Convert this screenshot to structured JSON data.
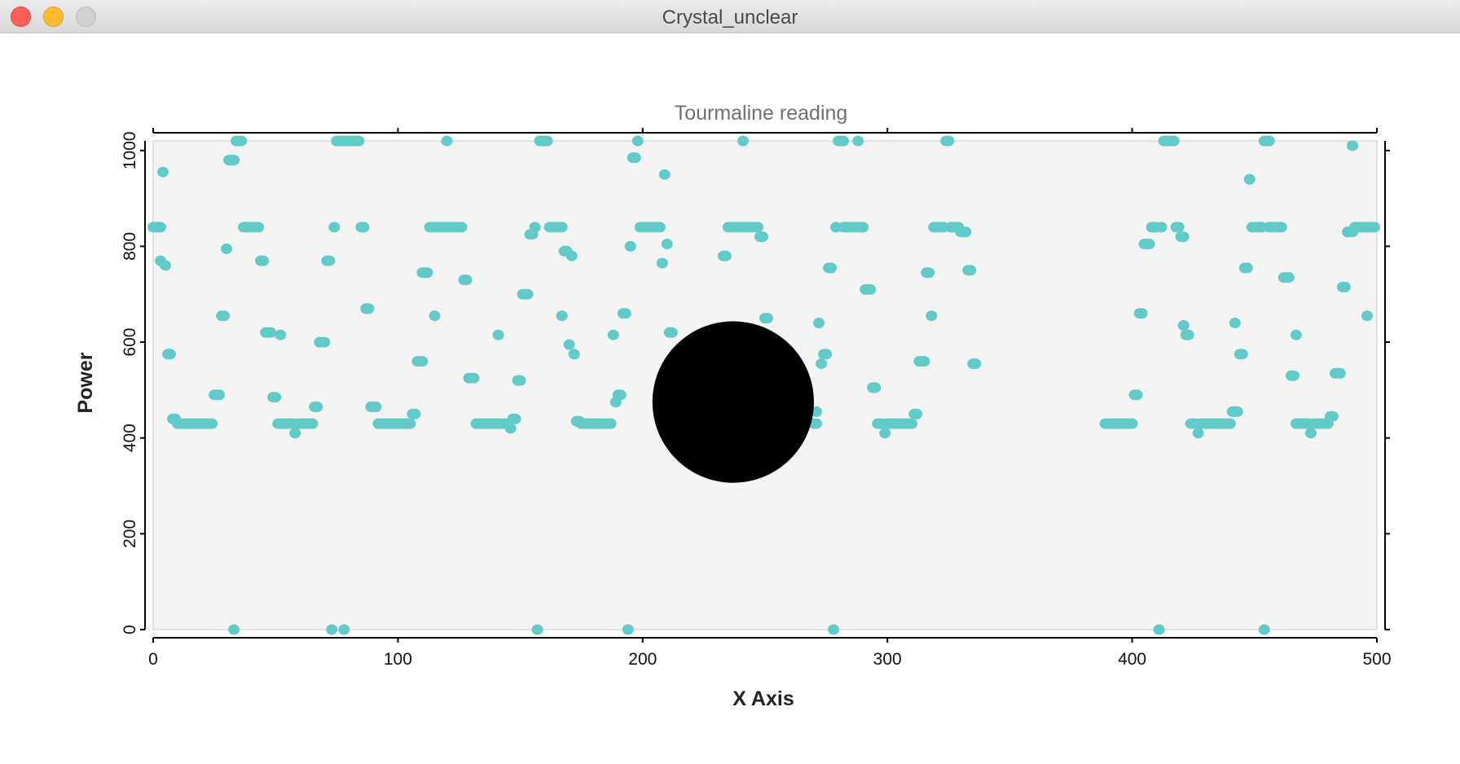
{
  "window": {
    "title": "Crystal_unclear",
    "controls": [
      "close",
      "minimize",
      "zoom"
    ]
  },
  "colors": {
    "marker": "#62cbc9",
    "plot_background": "#f4f4f4",
    "axis": "#000000",
    "overlay": "#000000"
  },
  "chart_data": {
    "type": "scatter",
    "title": "Tourmaline reading",
    "xlabel": "X Axis",
    "ylabel": "Power",
    "xlim": [
      0,
      500
    ],
    "ylim": [
      0,
      1020
    ],
    "xticks": [
      0,
      100,
      200,
      300,
      400,
      500
    ],
    "yticks": [
      0,
      200,
      400,
      600,
      800,
      1000
    ],
    "grid": false,
    "legend": "none",
    "points": [
      [
        0,
        840
      ],
      [
        1,
        840
      ],
      [
        2,
        840
      ],
      [
        3,
        840
      ],
      [
        3,
        770
      ],
      [
        4,
        955
      ],
      [
        5,
        760
      ],
      [
        6,
        575
      ],
      [
        7,
        575
      ],
      [
        8,
        440
      ],
      [
        9,
        440
      ],
      [
        10,
        430
      ],
      [
        11,
        430
      ],
      [
        12,
        430
      ],
      [
        13,
        430
      ],
      [
        14,
        430
      ],
      [
        15,
        430
      ],
      [
        16,
        430
      ],
      [
        17,
        430
      ],
      [
        18,
        430
      ],
      [
        19,
        430
      ],
      [
        20,
        430
      ],
      [
        21,
        430
      ],
      [
        22,
        430
      ],
      [
        23,
        430
      ],
      [
        24,
        430
      ],
      [
        25,
        490
      ],
      [
        26,
        490
      ],
      [
        27,
        490
      ],
      [
        28,
        655
      ],
      [
        29,
        655
      ],
      [
        30,
        795
      ],
      [
        31,
        980
      ],
      [
        32,
        980
      ],
      [
        33,
        980
      ],
      [
        33,
        0
      ],
      [
        34,
        1020
      ],
      [
        35,
        1020
      ],
      [
        36,
        1020
      ],
      [
        37,
        840
      ],
      [
        38,
        840
      ],
      [
        39,
        840
      ],
      [
        40,
        840
      ],
      [
        41,
        840
      ],
      [
        42,
        840
      ],
      [
        43,
        840
      ],
      [
        44,
        770
      ],
      [
        45,
        770
      ],
      [
        46,
        620
      ],
      [
        47,
        620
      ],
      [
        48,
        620
      ],
      [
        49,
        485
      ],
      [
        50,
        485
      ],
      [
        51,
        430
      ],
      [
        52,
        615
      ],
      [
        52,
        430
      ],
      [
        53,
        430
      ],
      [
        54,
        430
      ],
      [
        55,
        430
      ],
      [
        56,
        430
      ],
      [
        57,
        430
      ],
      [
        58,
        410
      ],
      [
        59,
        430
      ],
      [
        60,
        430
      ],
      [
        61,
        430
      ],
      [
        62,
        430
      ],
      [
        63,
        430
      ],
      [
        64,
        430
      ],
      [
        65,
        430
      ],
      [
        66,
        465
      ],
      [
        67,
        465
      ],
      [
        68,
        600
      ],
      [
        69,
        600
      ],
      [
        70,
        600
      ],
      [
        71,
        770
      ],
      [
        72,
        770
      ],
      [
        74,
        840
      ],
      [
        73,
        0
      ],
      [
        75,
        1020
      ],
      [
        76,
        1020
      ],
      [
        77,
        1020
      ],
      [
        78,
        1020
      ],
      [
        78,
        0
      ],
      [
        79,
        1020
      ],
      [
        80,
        1020
      ],
      [
        81,
        1020
      ],
      [
        82,
        1020
      ],
      [
        83,
        1020
      ],
      [
        84,
        1020
      ],
      [
        85,
        840
      ],
      [
        86,
        840
      ],
      [
        87,
        670
      ],
      [
        88,
        670
      ],
      [
        89,
        465
      ],
      [
        90,
        465
      ],
      [
        91,
        465
      ],
      [
        92,
        430
      ],
      [
        93,
        430
      ],
      [
        94,
        430
      ],
      [
        95,
        430
      ],
      [
        96,
        430
      ],
      [
        97,
        430
      ],
      [
        98,
        430
      ],
      [
        99,
        430
      ],
      [
        100,
        430
      ],
      [
        101,
        430
      ],
      [
        102,
        430
      ],
      [
        103,
        430
      ],
      [
        104,
        430
      ],
      [
        105,
        430
      ],
      [
        106,
        450
      ],
      [
        107,
        450
      ],
      [
        108,
        560
      ],
      [
        109,
        560
      ],
      [
        110,
        560
      ],
      [
        110,
        745
      ],
      [
        111,
        745
      ],
      [
        112,
        745
      ],
      [
        113,
        840
      ],
      [
        114,
        840
      ],
      [
        115,
        655
      ],
      [
        115,
        840
      ],
      [
        116,
        840
      ],
      [
        117,
        840
      ],
      [
        118,
        840
      ],
      [
        119,
        840
      ],
      [
        120,
        1020
      ],
      [
        120,
        840
      ],
      [
        121,
        840
      ],
      [
        122,
        840
      ],
      [
        123,
        840
      ],
      [
        124,
        840
      ],
      [
        125,
        840
      ],
      [
        126,
        840
      ],
      [
        127,
        730
      ],
      [
        128,
        730
      ],
      [
        129,
        525
      ],
      [
        130,
        525
      ],
      [
        131,
        525
      ],
      [
        132,
        430
      ],
      [
        133,
        430
      ],
      [
        134,
        430
      ],
      [
        135,
        430
      ],
      [
        136,
        430
      ],
      [
        137,
        430
      ],
      [
        138,
        430
      ],
      [
        139,
        430
      ],
      [
        140,
        430
      ],
      [
        141,
        615
      ],
      [
        141,
        430
      ],
      [
        142,
        430
      ],
      [
        143,
        430
      ],
      [
        144,
        430
      ],
      [
        145,
        430
      ],
      [
        146,
        420
      ],
      [
        147,
        440
      ],
      [
        148,
        440
      ],
      [
        149,
        520
      ],
      [
        150,
        520
      ],
      [
        151,
        700
      ],
      [
        152,
        700
      ],
      [
        153,
        700
      ],
      [
        154,
        825
      ],
      [
        155,
        825
      ],
      [
        156,
        840
      ],
      [
        157,
        0
      ],
      [
        158,
        1020
      ],
      [
        159,
        1020
      ],
      [
        160,
        1020
      ],
      [
        161,
        1020
      ],
      [
        162,
        840
      ],
      [
        163,
        840
      ],
      [
        164,
        840
      ],
      [
        165,
        840
      ],
      [
        166,
        840
      ],
      [
        167,
        840
      ],
      [
        167,
        655
      ],
      [
        168,
        790
      ],
      [
        169,
        790
      ],
      [
        170,
        595
      ],
      [
        171,
        780
      ],
      [
        172,
        575
      ],
      [
        173,
        435
      ],
      [
        174,
        435
      ],
      [
        175,
        430
      ],
      [
        176,
        430
      ],
      [
        177,
        430
      ],
      [
        178,
        430
      ],
      [
        179,
        430
      ],
      [
        180,
        430
      ],
      [
        181,
        430
      ],
      [
        182,
        430
      ],
      [
        183,
        430
      ],
      [
        184,
        430
      ],
      [
        185,
        430
      ],
      [
        186,
        430
      ],
      [
        187,
        430
      ],
      [
        188,
        615
      ],
      [
        189,
        475
      ],
      [
        190,
        490
      ],
      [
        191,
        490
      ],
      [
        192,
        660
      ],
      [
        193,
        660
      ],
      [
        194,
        0
      ],
      [
        195,
        800
      ],
      [
        196,
        985
      ],
      [
        197,
        985
      ],
      [
        198,
        1020
      ],
      [
        199,
        840
      ],
      [
        200,
        840
      ],
      [
        201,
        840
      ],
      [
        202,
        840
      ],
      [
        203,
        840
      ],
      [
        204,
        840
      ],
      [
        205,
        840
      ],
      [
        206,
        840
      ],
      [
        207,
        840
      ],
      [
        208,
        765
      ],
      [
        209,
        950
      ],
      [
        210,
        805
      ],
      [
        211,
        620
      ],
      [
        212,
        620
      ],
      [
        233,
        780
      ],
      [
        234,
        780
      ],
      [
        235,
        840
      ],
      [
        236,
        840
      ],
      [
        237,
        840
      ],
      [
        238,
        840
      ],
      [
        239,
        840
      ],
      [
        240,
        840
      ],
      [
        241,
        1020
      ],
      [
        241,
        840
      ],
      [
        242,
        840
      ],
      [
        243,
        840
      ],
      [
        244,
        840
      ],
      [
        245,
        840
      ],
      [
        246,
        840
      ],
      [
        247,
        840
      ],
      [
        248,
        820
      ],
      [
        249,
        820
      ],
      [
        250,
        650
      ],
      [
        251,
        650
      ],
      [
        270,
        430
      ],
      [
        271,
        430
      ],
      [
        271,
        455
      ],
      [
        272,
        640
      ],
      [
        273,
        555
      ],
      [
        274,
        575
      ],
      [
        275,
        575
      ],
      [
        276,
        755
      ],
      [
        277,
        755
      ],
      [
        278,
        0
      ],
      [
        279,
        840
      ],
      [
        280,
        1020
      ],
      [
        281,
        1020
      ],
      [
        282,
        1020
      ],
      [
        282,
        840
      ],
      [
        283,
        840
      ],
      [
        284,
        840
      ],
      [
        285,
        840
      ],
      [
        286,
        840
      ],
      [
        287,
        840
      ],
      [
        288,
        840
      ],
      [
        288,
        1020
      ],
      [
        289,
        840
      ],
      [
        290,
        840
      ],
      [
        291,
        710
      ],
      [
        292,
        710
      ],
      [
        293,
        710
      ],
      [
        294,
        505
      ],
      [
        295,
        505
      ],
      [
        296,
        430
      ],
      [
        297,
        430
      ],
      [
        298,
        430
      ],
      [
        299,
        410
      ],
      [
        300,
        430
      ],
      [
        301,
        430
      ],
      [
        302,
        430
      ],
      [
        303,
        430
      ],
      [
        304,
        430
      ],
      [
        305,
        430
      ],
      [
        306,
        430
      ],
      [
        307,
        430
      ],
      [
        308,
        430
      ],
      [
        309,
        430
      ],
      [
        310,
        430
      ],
      [
        311,
        450
      ],
      [
        312,
        450
      ],
      [
        313,
        560
      ],
      [
        314,
        560
      ],
      [
        315,
        560
      ],
      [
        316,
        745
      ],
      [
        317,
        745
      ],
      [
        318,
        655
      ],
      [
        319,
        840
      ],
      [
        320,
        840
      ],
      [
        321,
        840
      ],
      [
        322,
        840
      ],
      [
        323,
        840
      ],
      [
        324,
        1020
      ],
      [
        325,
        1020
      ],
      [
        326,
        840
      ],
      [
        327,
        840
      ],
      [
        328,
        840
      ],
      [
        329,
        840
      ],
      [
        330,
        830
      ],
      [
        331,
        830
      ],
      [
        332,
        830
      ],
      [
        333,
        750
      ],
      [
        334,
        750
      ],
      [
        335,
        555
      ],
      [
        336,
        555
      ],
      [
        389,
        430
      ],
      [
        390,
        430
      ],
      [
        391,
        430
      ],
      [
        392,
        430
      ],
      [
        393,
        430
      ],
      [
        394,
        430
      ],
      [
        395,
        430
      ],
      [
        396,
        430
      ],
      [
        397,
        430
      ],
      [
        398,
        430
      ],
      [
        399,
        430
      ],
      [
        400,
        430
      ],
      [
        401,
        490
      ],
      [
        402,
        490
      ],
      [
        403,
        660
      ],
      [
        404,
        660
      ],
      [
        405,
        805
      ],
      [
        406,
        805
      ],
      [
        407,
        805
      ],
      [
        408,
        840
      ],
      [
        409,
        840
      ],
      [
        410,
        840
      ],
      [
        411,
        0
      ],
      [
        412,
        840
      ],
      [
        413,
        1020
      ],
      [
        414,
        1020
      ],
      [
        415,
        1020
      ],
      [
        416,
        1020
      ],
      [
        417,
        1020
      ],
      [
        418,
        840
      ],
      [
        419,
        840
      ],
      [
        420,
        820
      ],
      [
        421,
        820
      ],
      [
        421,
        635
      ],
      [
        422,
        615
      ],
      [
        423,
        615
      ],
      [
        424,
        430
      ],
      [
        425,
        430
      ],
      [
        426,
        430
      ],
      [
        427,
        410
      ],
      [
        428,
        430
      ],
      [
        429,
        430
      ],
      [
        430,
        430
      ],
      [
        431,
        430
      ],
      [
        432,
        430
      ],
      [
        433,
        430
      ],
      [
        434,
        430
      ],
      [
        435,
        430
      ],
      [
        436,
        430
      ],
      [
        437,
        430
      ],
      [
        438,
        430
      ],
      [
        439,
        430
      ],
      [
        440,
        430
      ],
      [
        441,
        455
      ],
      [
        442,
        455
      ],
      [
        442,
        640
      ],
      [
        443,
        455
      ],
      [
        444,
        575
      ],
      [
        445,
        575
      ],
      [
        446,
        755
      ],
      [
        447,
        755
      ],
      [
        448,
        940
      ],
      [
        449,
        840
      ],
      [
        450,
        840
      ],
      [
        451,
        840
      ],
      [
        452,
        840
      ],
      [
        453,
        840
      ],
      [
        454,
        0
      ],
      [
        454,
        1020
      ],
      [
        455,
        1020
      ],
      [
        456,
        1020
      ],
      [
        456,
        840
      ],
      [
        457,
        840
      ],
      [
        458,
        840
      ],
      [
        459,
        840
      ],
      [
        460,
        840
      ],
      [
        461,
        840
      ],
      [
        462,
        735
      ],
      [
        463,
        735
      ],
      [
        464,
        735
      ],
      [
        465,
        530
      ],
      [
        466,
        530
      ],
      [
        467,
        615
      ],
      [
        467,
        430
      ],
      [
        468,
        430
      ],
      [
        469,
        430
      ],
      [
        470,
        430
      ],
      [
        471,
        430
      ],
      [
        472,
        430
      ],
      [
        473,
        410
      ],
      [
        474,
        430
      ],
      [
        475,
        430
      ],
      [
        476,
        430
      ],
      [
        477,
        430
      ],
      [
        478,
        430
      ],
      [
        479,
        430
      ],
      [
        480,
        430
      ],
      [
        481,
        445
      ],
      [
        482,
        445
      ],
      [
        483,
        535
      ],
      [
        484,
        535
      ],
      [
        485,
        535
      ],
      [
        486,
        715
      ],
      [
        487,
        715
      ],
      [
        488,
        830
      ],
      [
        489,
        830
      ],
      [
        490,
        1010
      ],
      [
        490,
        830
      ],
      [
        491,
        840
      ],
      [
        492,
        840
      ],
      [
        493,
        840
      ],
      [
        494,
        840
      ],
      [
        495,
        840
      ],
      [
        496,
        840
      ],
      [
        497,
        840
      ],
      [
        498,
        840
      ],
      [
        499,
        840
      ],
      [
        496,
        655
      ]
    ],
    "annotations": [
      {
        "shape": "filled-circle",
        "color": "#000000",
        "center": [
          237,
          475
        ],
        "radius_x": 33
      }
    ]
  }
}
